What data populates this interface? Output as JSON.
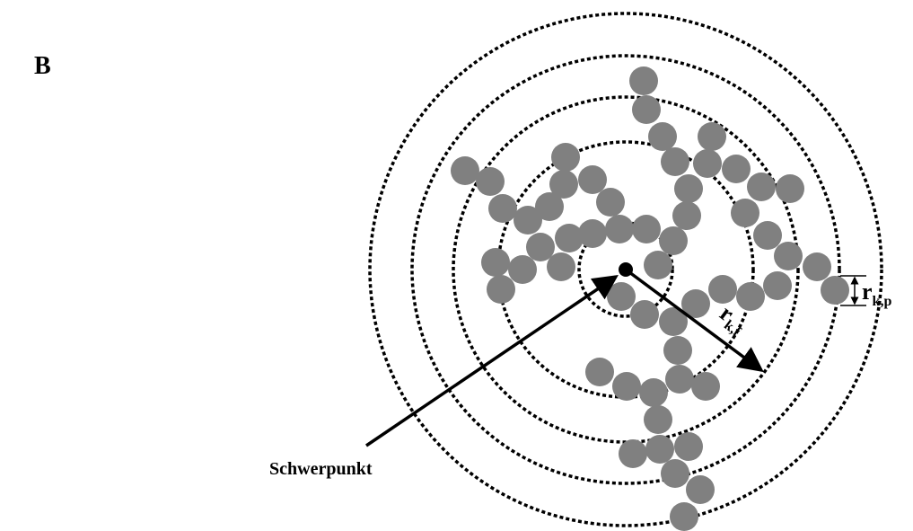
{
  "panel_label": "B",
  "center_label": "Schwerpunkt",
  "radius_labels": [
    {
      "symbol": "r",
      "subscript": "k,f"
    },
    {
      "symbol": "r",
      "subscript": "k,p"
    }
  ]
}
